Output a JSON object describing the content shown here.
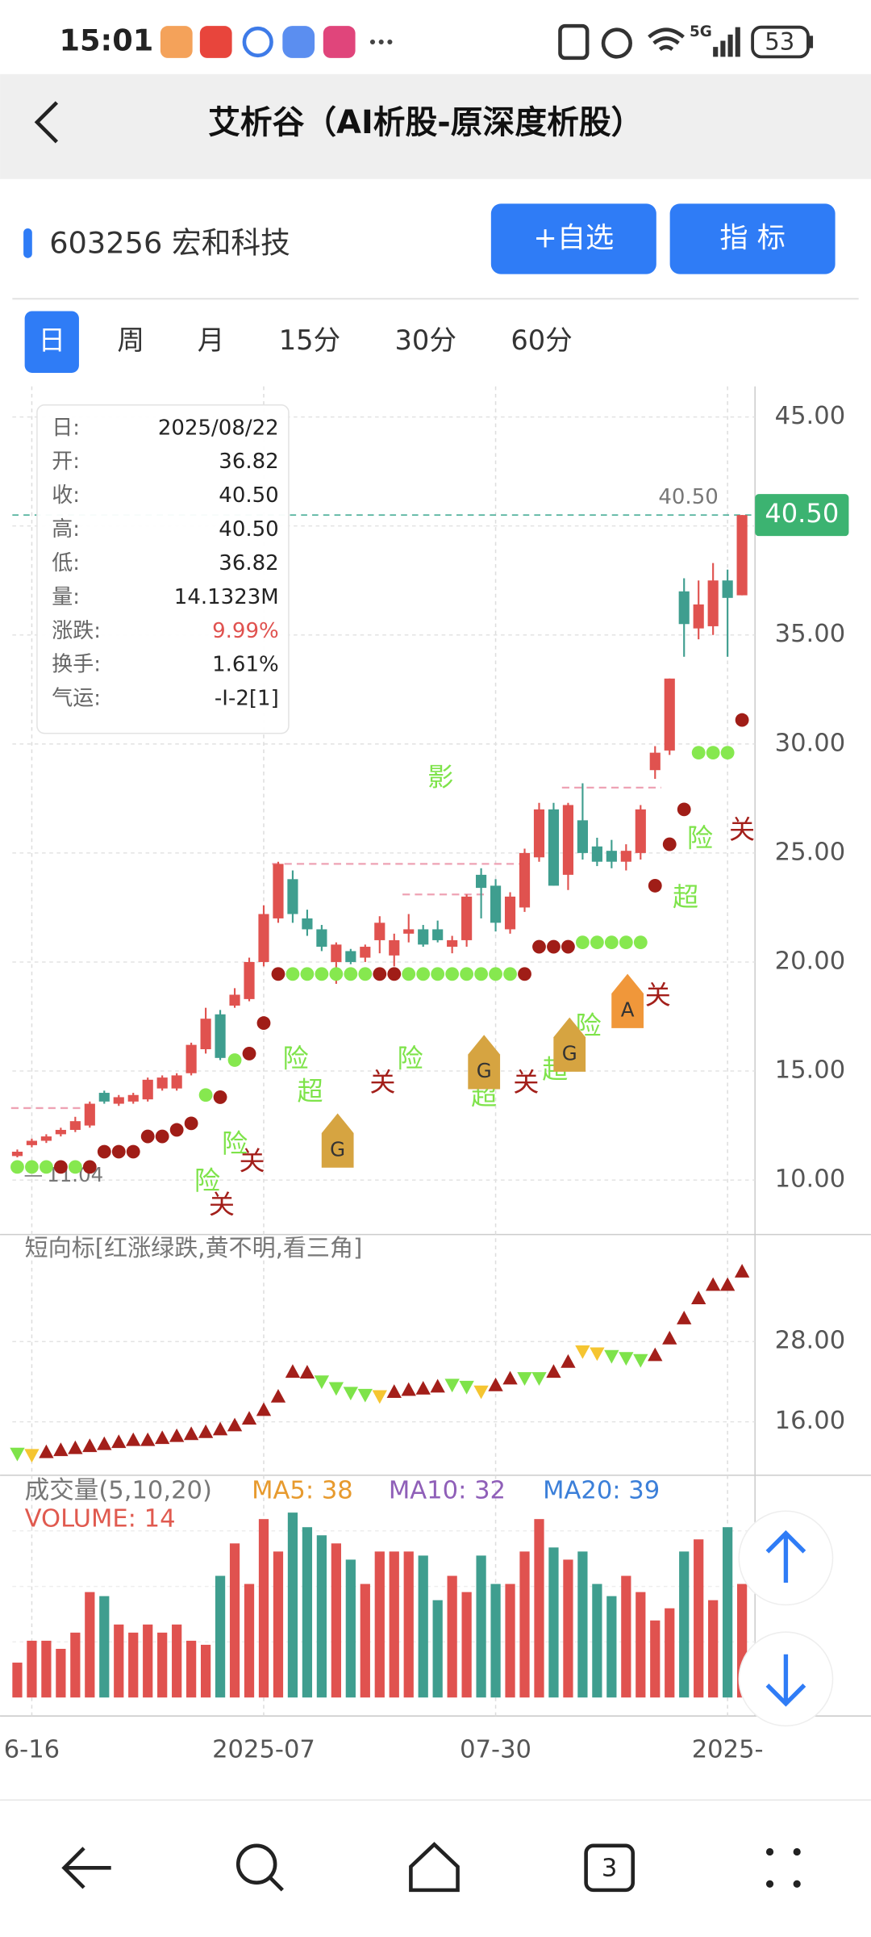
{
  "status_bar": {
    "time": "15:01",
    "network": "5G",
    "battery": "53"
  },
  "header": {
    "title": "艾析谷（AI析股-原深度析股）"
  },
  "stock": {
    "name": "603256 宏和科技"
  },
  "buttons": [
    "+自选",
    "指 标"
  ],
  "tabs": [
    "日",
    "周",
    "月",
    "15分",
    "30分",
    "60分"
  ],
  "tooltip": {
    "rows": [
      [
        "日:",
        "2025/08/22"
      ],
      [
        "开:",
        "36.82"
      ],
      [
        "收:",
        "40.50"
      ],
      [
        "高:",
        "40.50"
      ],
      [
        "低:",
        "36.82"
      ],
      [
        "量:",
        "14.1323M"
      ],
      [
        "涨跌:",
        "9.99%"
      ],
      [
        "换手:",
        "1.61%"
      ],
      [
        "气运:",
        "-I-2[1]"
      ]
    ]
  },
  "chart_data": [
    {
      "type": "candlestick",
      "up_color": "#e0524f",
      "down_color": "#3f9e8f",
      "candles": [
        [
          11.1,
          11.4,
          11.04,
          11.3
        ],
        [
          11.6,
          11.9,
          11.5,
          11.8
        ],
        [
          11.8,
          12.1,
          11.7,
          12.0
        ],
        [
          12.1,
          12.4,
          12.0,
          12.3
        ],
        [
          12.3,
          12.9,
          12.2,
          12.7
        ],
        [
          12.5,
          13.6,
          12.4,
          13.5
        ],
        [
          14.0,
          14.1,
          13.5,
          13.6
        ],
        [
          13.5,
          13.9,
          13.4,
          13.8
        ],
        [
          13.6,
          14.0,
          13.5,
          13.9
        ],
        [
          13.7,
          14.7,
          13.6,
          14.6
        ],
        [
          14.2,
          14.8,
          14.1,
          14.7
        ],
        [
          14.2,
          14.9,
          14.1,
          14.8
        ],
        [
          14.9,
          16.3,
          14.8,
          16.2
        ],
        [
          16.0,
          17.9,
          15.8,
          17.4
        ],
        [
          17.6,
          17.8,
          15.5,
          15.6
        ],
        [
          18.0,
          18.8,
          17.9,
          18.5
        ],
        [
          18.3,
          20.2,
          18.2,
          20.0
        ],
        [
          20.0,
          22.6,
          19.8,
          22.2
        ],
        [
          22.0,
          24.6,
          21.8,
          24.5
        ],
        [
          23.8,
          24.2,
          21.8,
          22.2
        ],
        [
          22.0,
          22.4,
          21.2,
          21.5
        ],
        [
          21.5,
          21.7,
          20.5,
          20.7
        ],
        [
          20.0,
          20.9,
          19.0,
          20.8
        ],
        [
          20.5,
          20.6,
          19.9,
          20.0
        ],
        [
          20.2,
          20.8,
          20.0,
          20.7
        ],
        [
          21.0,
          22.1,
          20.4,
          21.8
        ],
        [
          20.3,
          21.3,
          19.8,
          21.0
        ],
        [
          21.3,
          22.2,
          20.9,
          21.5
        ],
        [
          21.5,
          21.7,
          20.7,
          20.8
        ],
        [
          21.5,
          21.9,
          20.9,
          21.0
        ],
        [
          20.7,
          21.2,
          20.4,
          21.0
        ],
        [
          21.0,
          23.1,
          20.7,
          23.0
        ],
        [
          24.0,
          24.3,
          22.0,
          23.4
        ],
        [
          23.5,
          23.8,
          21.4,
          21.8
        ],
        [
          21.5,
          23.2,
          21.3,
          23.0
        ],
        [
          22.5,
          25.2,
          22.3,
          25.0
        ],
        [
          24.8,
          27.3,
          24.6,
          27.0
        ],
        [
          27.0,
          27.3,
          23.5,
          23.5
        ],
        [
          24.0,
          27.3,
          23.3,
          27.2
        ],
        [
          26.5,
          28.2,
          24.7,
          25.0
        ],
        [
          25.3,
          25.7,
          24.4,
          24.6
        ],
        [
          25.1,
          25.6,
          24.3,
          24.6
        ],
        [
          24.6,
          25.4,
          24.2,
          25.1
        ],
        [
          25.0,
          27.2,
          24.7,
          27.0
        ],
        [
          28.8,
          29.9,
          28.4,
          29.6
        ],
        [
          29.7,
          33.0,
          29.5,
          33.0
        ],
        [
          37.0,
          37.6,
          34.0,
          35.5
        ],
        [
          35.3,
          37.5,
          34.8,
          36.4
        ],
        [
          35.4,
          38.3,
          35.0,
          37.5
        ],
        [
          37.5,
          38.0,
          34.0,
          36.7
        ],
        [
          36.82,
          40.5,
          36.82,
          40.5
        ]
      ],
      "ylim": [
        7.5,
        46.4
      ],
      "yticks": [
        {
          "value": 10,
          "label": "10.00"
        },
        {
          "value": 15,
          "label": "15.00"
        },
        {
          "value": 20,
          "label": "20.00"
        },
        {
          "value": 25,
          "label": "25.00"
        },
        {
          "value": 30,
          "label": "30.00"
        },
        {
          "value": 35,
          "label": "35.00"
        },
        {
          "value": 40,
          "label": "40.00"
        },
        {
          "value": 45,
          "label": "45.00"
        }
      ],
      "last_price": {
        "value": 40.5,
        "label": "40.50"
      },
      "low_label": 11.04,
      "dot_colors": {
        "r": "#a01d17",
        "g": "#86e84f"
      },
      "dots": [
        [
          0,
          10.6,
          "g"
        ],
        [
          1,
          10.6,
          "g"
        ],
        [
          2,
          10.6,
          "g"
        ],
        [
          3,
          10.6,
          "r"
        ],
        [
          4,
          10.6,
          "g"
        ],
        [
          5,
          10.6,
          "r"
        ],
        [
          6,
          11.3,
          "r"
        ],
        [
          7,
          11.3,
          "r"
        ],
        [
          8,
          11.3,
          "r"
        ],
        [
          9,
          12.0,
          "r"
        ],
        [
          10,
          12.0,
          "r"
        ],
        [
          11,
          12.3,
          "r"
        ],
        [
          12,
          12.6,
          "r"
        ],
        [
          13,
          13.9,
          "g"
        ],
        [
          14,
          13.8,
          "r"
        ],
        [
          15,
          15.5,
          "g"
        ],
        [
          16,
          15.8,
          "r"
        ],
        [
          17,
          17.2,
          "r"
        ],
        [
          18,
          19.45,
          "r"
        ],
        [
          19,
          19.45,
          "g"
        ],
        [
          20,
          19.45,
          "g"
        ],
        [
          21,
          19.45,
          "g"
        ],
        [
          22,
          19.45,
          "g"
        ],
        [
          23,
          19.45,
          "g"
        ],
        [
          24,
          19.45,
          "g"
        ],
        [
          25,
          19.45,
          "r"
        ],
        [
          26,
          19.45,
          "r"
        ],
        [
          27,
          19.45,
          "g"
        ],
        [
          28,
          19.45,
          "g"
        ],
        [
          29,
          19.45,
          "g"
        ],
        [
          30,
          19.45,
          "g"
        ],
        [
          31,
          19.45,
          "g"
        ],
        [
          32,
          19.45,
          "g"
        ],
        [
          33,
          19.45,
          "g"
        ],
        [
          34,
          19.45,
          "g"
        ],
        [
          35,
          19.45,
          "r"
        ],
        [
          36,
          20.7,
          "r"
        ],
        [
          37,
          20.7,
          "r"
        ],
        [
          38,
          20.7,
          "r"
        ],
        [
          39,
          20.9,
          "g"
        ],
        [
          40,
          20.9,
          "g"
        ],
        [
          41,
          20.9,
          "g"
        ],
        [
          42,
          20.9,
          "g"
        ],
        [
          43,
          20.9,
          "g"
        ],
        [
          44,
          23.5,
          "r"
        ],
        [
          45,
          25.4,
          "r"
        ],
        [
          46,
          27.0,
          "r"
        ],
        [
          47,
          29.6,
          "g"
        ],
        [
          48,
          29.6,
          "g"
        ],
        [
          49,
          29.6,
          "g"
        ],
        [
          50,
          31.1,
          "r"
        ]
      ],
      "level_color": "#eea2b4",
      "levels": [
        [
          0,
          5,
          13.3
        ],
        [
          18,
          35,
          24.5
        ],
        [
          27,
          32,
          23.1
        ],
        [
          38,
          44,
          28.0
        ]
      ],
      "signal_colors": {
        "关": "#a31f1a",
        "险": "#7ee34a",
        "超": "#7ee34a",
        "影": "#7ee34a",
        "G": "#d6a441",
        "A": "#f0973a"
      },
      "annotations": [
        {
          "text": "关",
          "i": 14.1,
          "price": 8.8
        },
        {
          "text": "险",
          "i": 13.1,
          "price": 9.9
        },
        {
          "text": "险",
          "i": 15,
          "price": 11.6
        },
        {
          "text": "关",
          "i": 16.2,
          "price": 10.8
        },
        {
          "text": "险",
          "i": 19.2,
          "price": 15.5
        },
        {
          "text": "超",
          "i": 20.2,
          "price": 14.0
        },
        {
          "text": "关",
          "i": 25.2,
          "price": 14.4
        },
        {
          "text": "险",
          "i": 27.1,
          "price": 15.5
        },
        {
          "text": "影",
          "i": 29.2,
          "price": 28.4
        },
        {
          "text": "超",
          "i": 32.2,
          "price": 13.8
        },
        {
          "text": "关",
          "i": 35.1,
          "price": 14.4
        },
        {
          "text": "超",
          "i": 37.1,
          "price": 15.0
        },
        {
          "text": "险",
          "i": 39.4,
          "price": 17.0
        },
        {
          "text": "关",
          "i": 44.2,
          "price": 18.4
        },
        {
          "text": "超",
          "i": 46.1,
          "price": 22.9
        },
        {
          "text": "险",
          "i": 47.1,
          "price": 25.6
        },
        {
          "text": "关",
          "i": 50,
          "price": 26.0
        },
        {
          "text": "G",
          "i": 22.1,
          "price": 11.7
        },
        {
          "text": "G",
          "i": 32.2,
          "price": 15.3
        },
        {
          "text": "G",
          "i": 38.1,
          "price": 16.1
        },
        {
          "text": "A",
          "i": 42.1,
          "price": 18.1
        }
      ]
    },
    {
      "type": "triangle",
      "title": "短向标[红涨绿跌,黄不明,看三角]",
      "values": [
        11.2,
        11.0,
        11.5,
        11.8,
        12.1,
        12.4,
        12.7,
        13.0,
        13.3,
        13.3,
        13.6,
        13.9,
        14.2,
        14.5,
        14.9,
        15.5,
        16.5,
        17.8,
        19.8,
        23.5,
        23.4,
        22.0,
        21.0,
        20.3,
        20.0,
        19.8,
        20.5,
        20.8,
        21.0,
        21.3,
        21.5,
        21.2,
        20.5,
        21.5,
        22.5,
        22.5,
        22.5,
        23.5,
        25.0,
        26.5,
        26.2,
        25.8,
        25.5,
        25.2,
        26.0,
        28.5,
        31.5,
        34.5,
        36.5,
        36.5,
        38.5
      ],
      "trend": [
        "down",
        "unclear",
        "up",
        "up",
        "up",
        "up",
        "up",
        "up",
        "up",
        "up",
        "up",
        "up",
        "up",
        "up",
        "up",
        "up",
        "up",
        "up",
        "up",
        "up",
        "up",
        "down",
        "down",
        "down",
        "down",
        "unclear",
        "up",
        "up",
        "up",
        "up",
        "down",
        "down",
        "unclear",
        "up",
        "up",
        "down",
        "down",
        "up",
        "up",
        "unclear",
        "unclear",
        "down",
        "down",
        "down",
        "up",
        "up",
        "up",
        "up",
        "up",
        "up",
        "up"
      ],
      "trend_colors": {
        "up": "#a31f1a",
        "down": "#7ee34a",
        "unclear": "#f5c531"
      },
      "ylim": [
        8,
        44
      ],
      "yticks": [
        {
          "value": 16,
          "label": "16.00"
        },
        {
          "value": 28,
          "label": "28.00"
        }
      ]
    },
    {
      "type": "bar",
      "title": "成交量(5,10,20)",
      "legend": [
        {
          "label": "MA5: 38",
          "color": "#e79a2e"
        },
        {
          "label": "MA10: 32",
          "color": "#8f5fb8"
        },
        {
          "label": "MA20: 39",
          "color": "#3b7fd9"
        }
      ],
      "volume_label": "VOLUME: 14",
      "volume_color": "#e05a4f",
      "values": [
        4.3,
        7,
        7,
        6,
        8,
        13,
        12.5,
        9,
        8,
        9,
        8,
        9,
        7,
        6.5,
        15,
        19,
        14,
        22,
        18,
        22.8,
        21,
        20,
        19,
        17,
        14,
        18,
        18,
        18,
        17.5,
        12,
        15,
        13,
        17.5,
        14,
        14,
        18,
        22,
        18.5,
        17,
        18,
        14,
        12.5,
        15,
        13,
        9.5,
        11,
        18,
        19.5,
        12,
        21,
        14
      ],
      "ylim": [
        0,
        27.4
      ],
      "xticks": [
        {
          "value": 1,
          "label": "6-16"
        },
        {
          "value": 17,
          "label": "2025-07"
        },
        {
          "value": 33,
          "label": "07-30"
        },
        {
          "value": 49,
          "label": "2025-"
        }
      ]
    }
  ],
  "nav": {
    "tabs_count": "3"
  }
}
